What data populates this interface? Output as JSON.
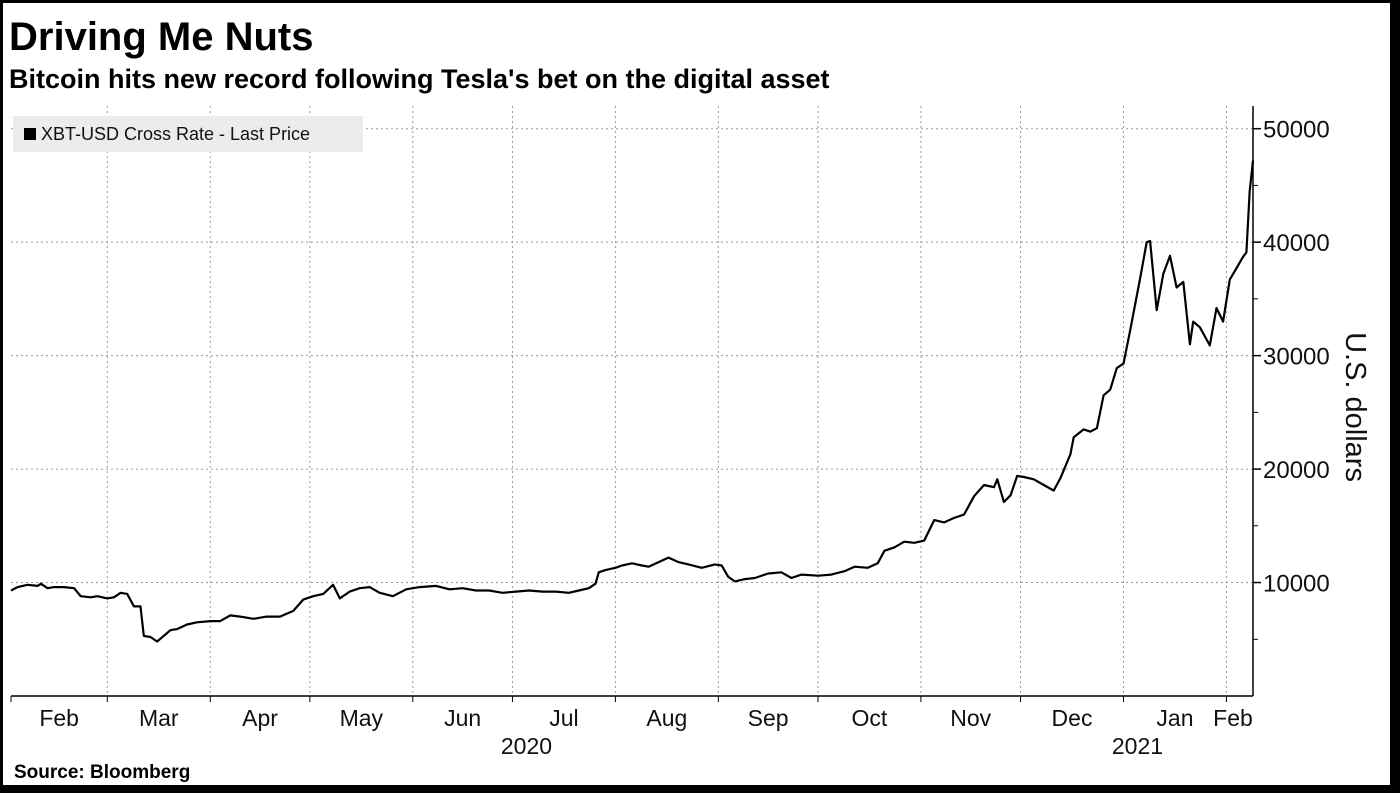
{
  "title": "Driving Me Nuts",
  "subtitle": "Bitcoin hits new record following Tesla's bet on the digital asset",
  "source": "Source: Bloomberg",
  "chart_data": {
    "type": "line",
    "ylabel": "U.S. dollars",
    "ylim": [
      0,
      52000
    ],
    "yticks": [
      10000,
      20000,
      30000,
      40000,
      50000
    ],
    "x_start": "2020-02-01",
    "x_end": "2021-02-09",
    "month_ticks": [
      {
        "label": "Feb",
        "date": "2020-02-01"
      },
      {
        "label": "Mar",
        "date": "2020-03-01"
      },
      {
        "label": "Apr",
        "date": "2020-04-01"
      },
      {
        "label": "May",
        "date": "2020-05-01"
      },
      {
        "label": "Jun",
        "date": "2020-06-01"
      },
      {
        "label": "Jul",
        "date": "2020-07-01"
      },
      {
        "label": "Aug",
        "date": "2020-08-01"
      },
      {
        "label": "Sep",
        "date": "2020-09-01"
      },
      {
        "label": "Oct",
        "date": "2020-10-01"
      },
      {
        "label": "Nov",
        "date": "2020-11-01"
      },
      {
        "label": "Dec",
        "date": "2020-12-01"
      },
      {
        "label": "Jan",
        "date": "2021-01-01"
      },
      {
        "label": "Feb",
        "date": "2021-02-01"
      }
    ],
    "year_labels": [
      {
        "label": "2020",
        "date": "2020-07-01"
      },
      {
        "label": "2021",
        "date": "2021-01-01"
      }
    ],
    "grid": true,
    "legend_position": "top-left",
    "series": [
      {
        "name": "XBT-USD Cross Rate - Last Price",
        "color": "#000000",
        "points": [
          [
            "2020-02-01",
            9300
          ],
          [
            "2020-02-03",
            9600
          ],
          [
            "2020-02-06",
            9800
          ],
          [
            "2020-02-09",
            9700
          ],
          [
            "2020-02-10",
            9900
          ],
          [
            "2020-02-12",
            9500
          ],
          [
            "2020-02-14",
            9600
          ],
          [
            "2020-02-17",
            9600
          ],
          [
            "2020-02-20",
            9500
          ],
          [
            "2020-02-22",
            8800
          ],
          [
            "2020-02-25",
            8700
          ],
          [
            "2020-02-27",
            8800
          ],
          [
            "2020-03-01",
            8600
          ],
          [
            "2020-03-03",
            8700
          ],
          [
            "2020-03-05",
            9100
          ],
          [
            "2020-03-07",
            9000
          ],
          [
            "2020-03-09",
            7900
          ],
          [
            "2020-03-11",
            7900
          ],
          [
            "2020-03-12",
            5300
          ],
          [
            "2020-03-14",
            5200
          ],
          [
            "2020-03-16",
            4800
          ],
          [
            "2020-03-18",
            5300
          ],
          [
            "2020-03-20",
            5800
          ],
          [
            "2020-03-22",
            5900
          ],
          [
            "2020-03-25",
            6300
          ],
          [
            "2020-03-28",
            6500
          ],
          [
            "2020-04-01",
            6600
          ],
          [
            "2020-04-04",
            6600
          ],
          [
            "2020-04-07",
            7100
          ],
          [
            "2020-04-10",
            7000
          ],
          [
            "2020-04-14",
            6800
          ],
          [
            "2020-04-18",
            7000
          ],
          [
            "2020-04-22",
            7000
          ],
          [
            "2020-04-26",
            7500
          ],
          [
            "2020-04-29",
            8500
          ],
          [
            "2020-05-02",
            8800
          ],
          [
            "2020-05-05",
            9000
          ],
          [
            "2020-05-08",
            9800
          ],
          [
            "2020-05-10",
            8600
          ],
          [
            "2020-05-13",
            9200
          ],
          [
            "2020-05-16",
            9500
          ],
          [
            "2020-05-19",
            9600
          ],
          [
            "2020-05-22",
            9100
          ],
          [
            "2020-05-26",
            8800
          ],
          [
            "2020-05-30",
            9400
          ],
          [
            "2020-06-03",
            9600
          ],
          [
            "2020-06-08",
            9700
          ],
          [
            "2020-06-12",
            9400
          ],
          [
            "2020-06-16",
            9500
          ],
          [
            "2020-06-20",
            9300
          ],
          [
            "2020-06-24",
            9300
          ],
          [
            "2020-06-28",
            9100
          ],
          [
            "2020-07-02",
            9200
          ],
          [
            "2020-07-06",
            9300
          ],
          [
            "2020-07-10",
            9200
          ],
          [
            "2020-07-14",
            9200
          ],
          [
            "2020-07-18",
            9100
          ],
          [
            "2020-07-21",
            9300
          ],
          [
            "2020-07-24",
            9500
          ],
          [
            "2020-07-26",
            9900
          ],
          [
            "2020-07-27",
            10900
          ],
          [
            "2020-07-29",
            11100
          ],
          [
            "2020-08-01",
            11300
          ],
          [
            "2020-08-03",
            11500
          ],
          [
            "2020-08-06",
            11700
          ],
          [
            "2020-08-09",
            11500
          ],
          [
            "2020-08-11",
            11400
          ],
          [
            "2020-08-14",
            11800
          ],
          [
            "2020-08-17",
            12200
          ],
          [
            "2020-08-20",
            11800
          ],
          [
            "2020-08-23",
            11600
          ],
          [
            "2020-08-27",
            11300
          ],
          [
            "2020-08-31",
            11600
          ],
          [
            "2020-09-02",
            11500
          ],
          [
            "2020-09-04",
            10500
          ],
          [
            "2020-09-06",
            10100
          ],
          [
            "2020-09-09",
            10300
          ],
          [
            "2020-09-12",
            10400
          ],
          [
            "2020-09-16",
            10800
          ],
          [
            "2020-09-20",
            10900
          ],
          [
            "2020-09-23",
            10400
          ],
          [
            "2020-09-26",
            10700
          ],
          [
            "2020-10-01",
            10600
          ],
          [
            "2020-10-05",
            10700
          ],
          [
            "2020-10-09",
            11000
          ],
          [
            "2020-10-12",
            11400
          ],
          [
            "2020-10-16",
            11300
          ],
          [
            "2020-10-19",
            11700
          ],
          [
            "2020-10-21",
            12800
          ],
          [
            "2020-10-24",
            13100
          ],
          [
            "2020-10-27",
            13600
          ],
          [
            "2020-10-30",
            13500
          ],
          [
            "2020-11-02",
            13700
          ],
          [
            "2020-11-05",
            15500
          ],
          [
            "2020-11-08",
            15300
          ],
          [
            "2020-11-11",
            15700
          ],
          [
            "2020-11-14",
            16000
          ],
          [
            "2020-11-17",
            17600
          ],
          [
            "2020-11-20",
            18600
          ],
          [
            "2020-11-23",
            18400
          ],
          [
            "2020-11-24",
            19100
          ],
          [
            "2020-11-26",
            17100
          ],
          [
            "2020-11-28",
            17700
          ],
          [
            "2020-11-30",
            19400
          ],
          [
            "2020-12-02",
            19300
          ],
          [
            "2020-12-05",
            19100
          ],
          [
            "2020-12-08",
            18600
          ],
          [
            "2020-12-11",
            18100
          ],
          [
            "2020-12-13",
            19200
          ],
          [
            "2020-12-16",
            21300
          ],
          [
            "2020-12-17",
            22800
          ],
          [
            "2020-12-20",
            23500
          ],
          [
            "2020-12-22",
            23300
          ],
          [
            "2020-12-24",
            23600
          ],
          [
            "2020-12-26",
            26500
          ],
          [
            "2020-12-28",
            27000
          ],
          [
            "2020-12-30",
            28900
          ],
          [
            "2021-01-01",
            29300
          ],
          [
            "2021-01-03",
            32200
          ],
          [
            "2021-01-06",
            36800
          ],
          [
            "2021-01-08",
            40000
          ],
          [
            "2021-01-09",
            40100
          ],
          [
            "2021-01-11",
            34000
          ],
          [
            "2021-01-13",
            37200
          ],
          [
            "2021-01-15",
            38800
          ],
          [
            "2021-01-17",
            36000
          ],
          [
            "2021-01-19",
            36500
          ],
          [
            "2021-01-21",
            31000
          ],
          [
            "2021-01-22",
            33000
          ],
          [
            "2021-01-24",
            32500
          ],
          [
            "2021-01-27",
            30900
          ],
          [
            "2021-01-29",
            34200
          ],
          [
            "2021-01-31",
            33000
          ],
          [
            "2021-02-02",
            36700
          ],
          [
            "2021-02-04",
            37700
          ],
          [
            "2021-02-06",
            38700
          ],
          [
            "2021-02-07",
            39100
          ],
          [
            "2021-02-08",
            44500
          ],
          [
            "2021-02-09",
            47200
          ]
        ]
      }
    ]
  }
}
